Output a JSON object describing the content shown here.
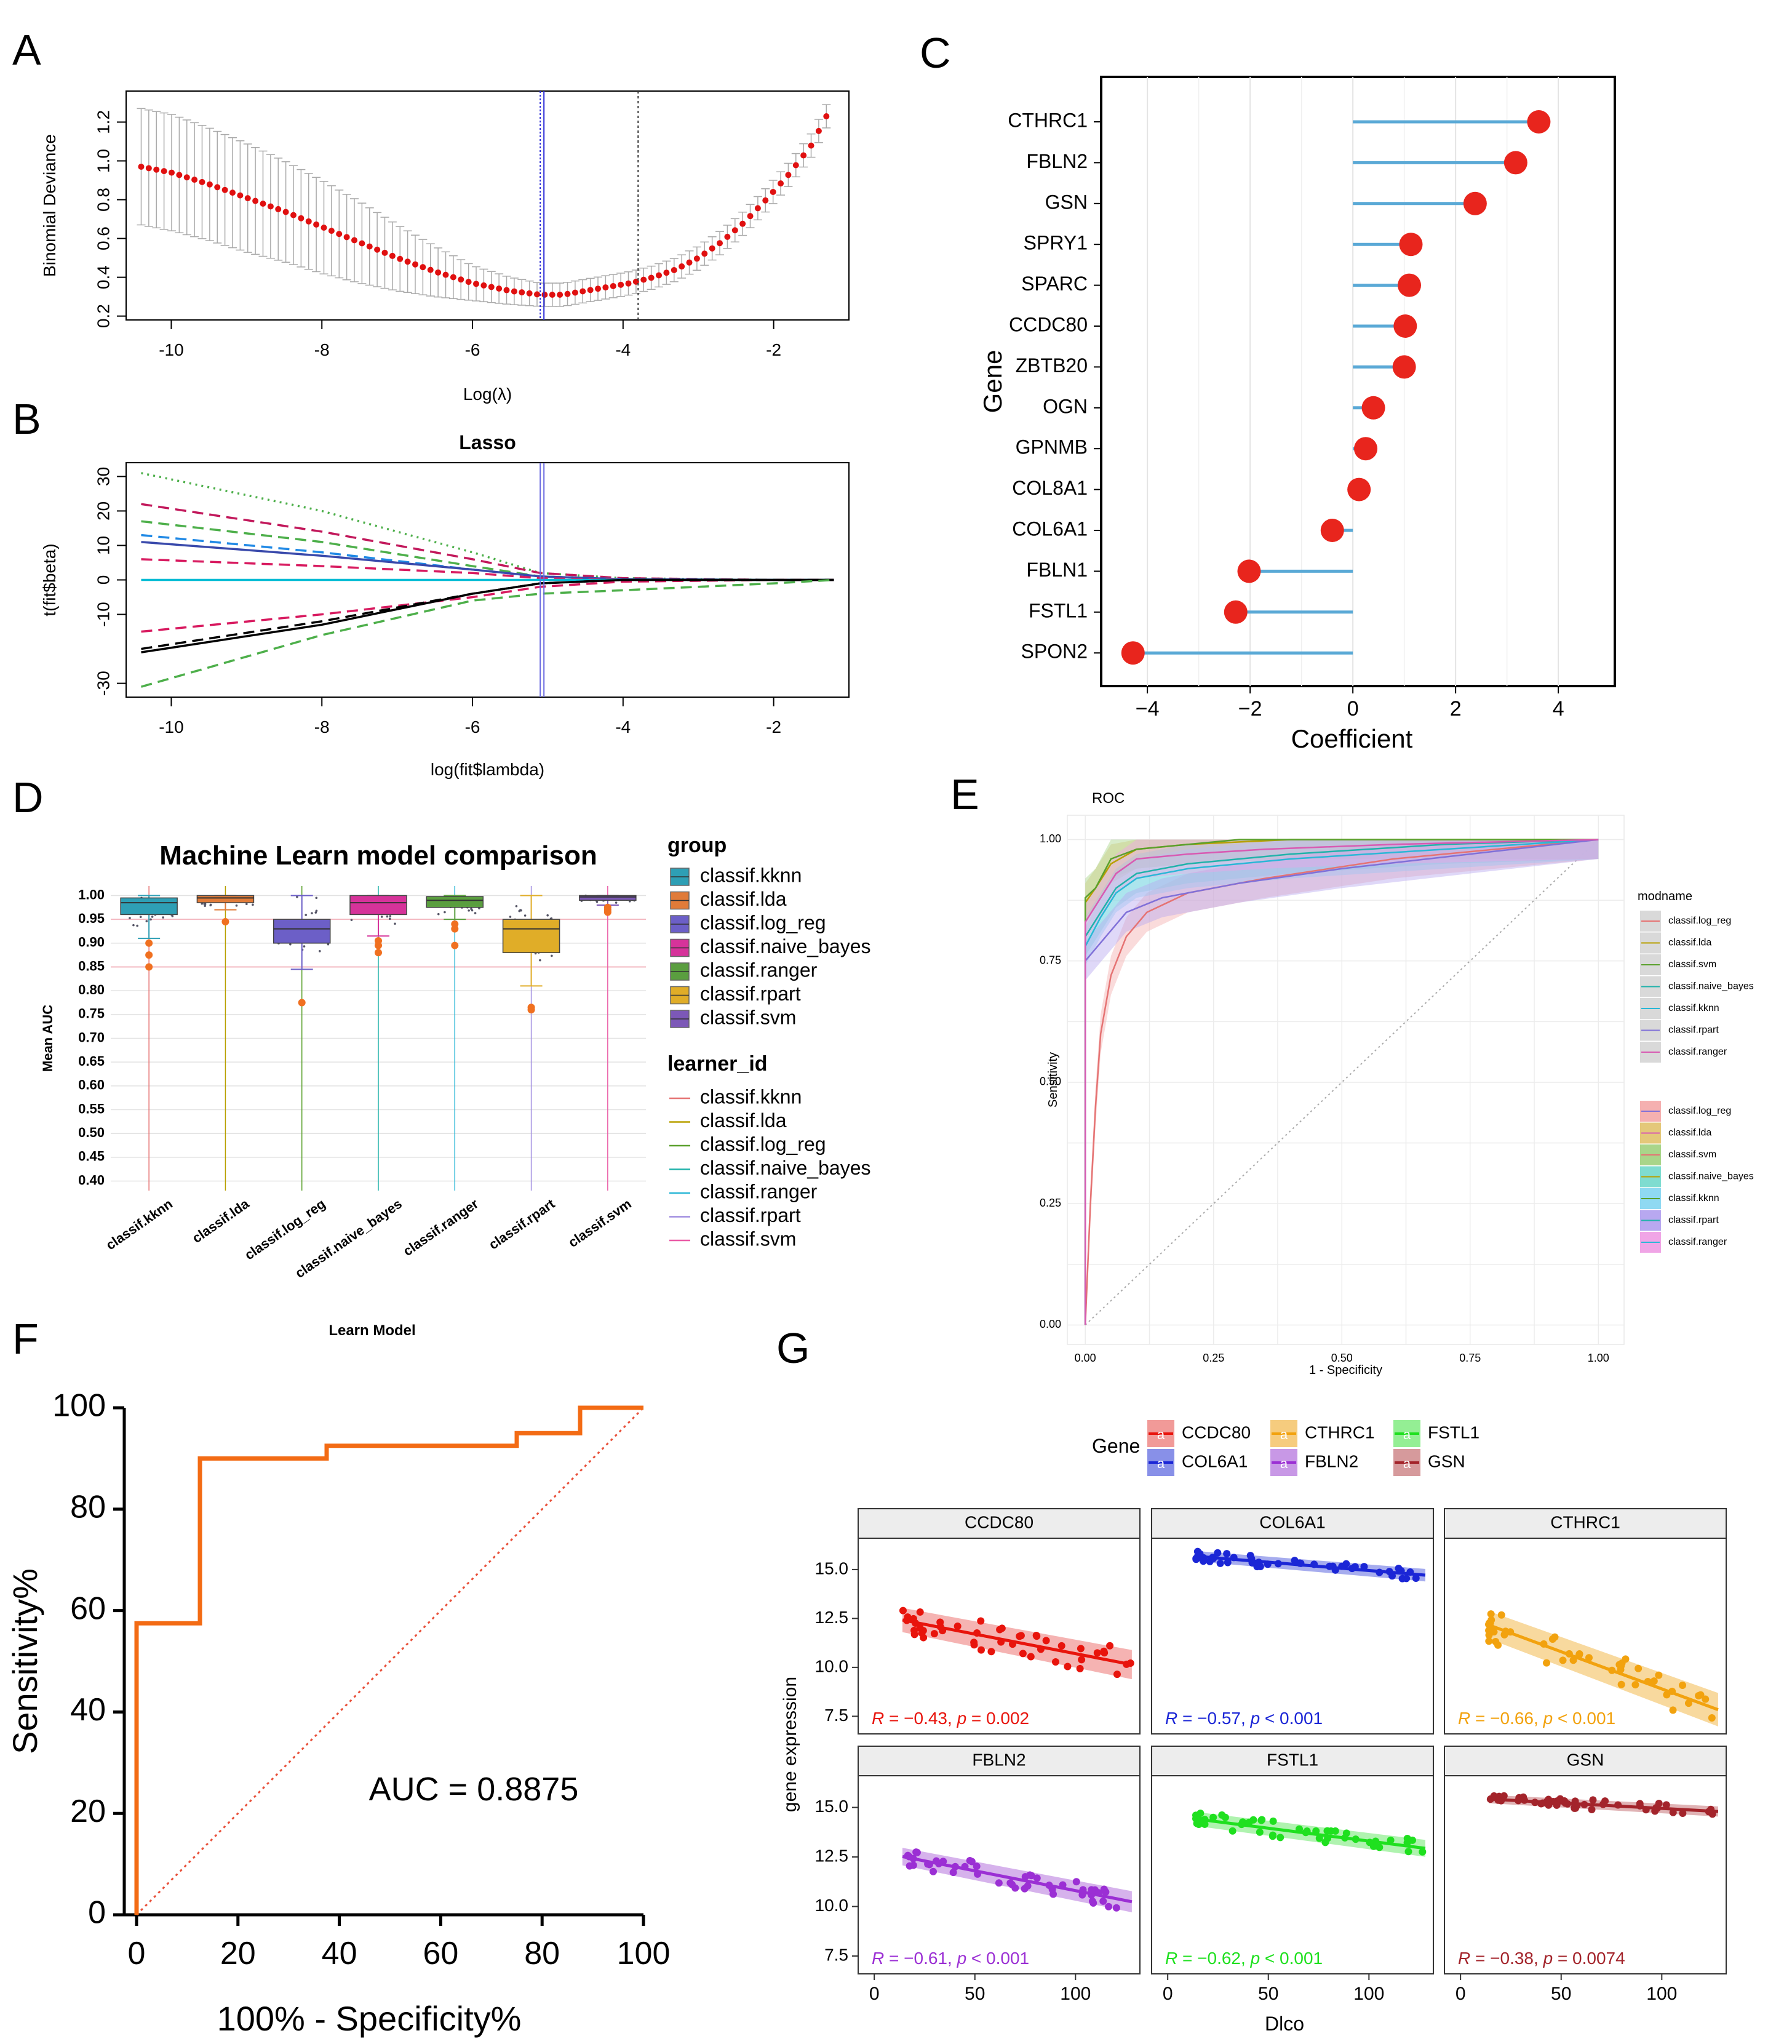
{
  "panel_labels": [
    "A",
    "B",
    "C",
    "D",
    "E",
    "F",
    "G"
  ],
  "chart_data": [
    {
      "panel": "A",
      "type": "scatter",
      "title": "",
      "xlabel": "Log(λ)",
      "ylabel": "Binomial Deviance",
      "xlim": [
        -10.6,
        -1.0
      ],
      "ylim": [
        0.18,
        1.36
      ],
      "xticks": [
        "-10",
        "-8",
        "-6",
        "-4",
        "-2"
      ],
      "yticks": [
        "0.2",
        "0.4",
        "0.6",
        "0.8",
        "1.0",
        "1.2"
      ],
      "lambda_min": -5.1,
      "lambda_1se": -3.8,
      "x": [
        -10.4,
        -10.0,
        -9.5,
        -9.0,
        -8.5,
        -8.0,
        -7.5,
        -7.0,
        -6.5,
        -6.0,
        -5.5,
        -5.1,
        -4.8,
        -4.5,
        -4.2,
        -3.9,
        -3.6,
        -3.3,
        -3.0,
        -2.7,
        -2.4,
        -2.1,
        -1.8,
        -1.5,
        -1.3
      ],
      "y": [
        0.97,
        0.94,
        0.88,
        0.81,
        0.74,
        0.66,
        0.58,
        0.5,
        0.43,
        0.37,
        0.33,
        0.31,
        0.31,
        0.33,
        0.35,
        0.37,
        0.4,
        0.44,
        0.5,
        0.58,
        0.68,
        0.8,
        0.93,
        1.08,
        1.23
      ],
      "err": [
        0.3,
        0.3,
        0.29,
        0.28,
        0.26,
        0.24,
        0.21,
        0.17,
        0.13,
        0.09,
        0.07,
        0.06,
        0.06,
        0.06,
        0.06,
        0.06,
        0.06,
        0.06,
        0.06,
        0.06,
        0.06,
        0.06,
        0.06,
        0.06,
        0.06
      ]
    },
    {
      "panel": "B",
      "type": "line",
      "title": "Lasso",
      "xlabel": "log(fit$lambda)",
      "ylabel": "t(fit$beta)",
      "xlim": [
        -10.6,
        -1.0
      ],
      "ylim": [
        -34,
        34
      ],
      "xticks": [
        "-10",
        "-8",
        "-6",
        "-4",
        "-2"
      ],
      "yticks": [
        "-30",
        "-10",
        "0",
        "10",
        "20",
        "30"
      ],
      "lambda_line": -5.1,
      "x": [
        -10.4,
        -8.0,
        -6.0,
        -5.1,
        -4.0,
        -2.0,
        -1.2
      ],
      "series": [
        {
          "name": "s1",
          "color": "#4daf4a",
          "dash": "dot",
          "values": [
            31,
            20,
            8,
            2,
            0.5,
            0,
            0
          ]
        },
        {
          "name": "s2",
          "color": "#c2185b",
          "dash": "dash",
          "values": [
            22,
            14,
            6,
            2,
            0.5,
            0,
            0
          ]
        },
        {
          "name": "s3",
          "color": "#4daf4a",
          "dash": "dash",
          "values": [
            17,
            11,
            4,
            1,
            0.2,
            0,
            0
          ]
        },
        {
          "name": "s4",
          "color": "#1e88e5",
          "dash": "dash",
          "values": [
            13,
            8,
            3,
            1,
            0.2,
            0,
            0
          ]
        },
        {
          "name": "s5",
          "color": "#3949ab",
          "dash": "solid",
          "values": [
            11,
            7,
            3,
            1,
            0.2,
            0,
            0
          ]
        },
        {
          "name": "s6",
          "color": "#d81b60",
          "dash": "dash",
          "values": [
            6,
            4,
            2,
            0.5,
            0,
            0,
            0
          ]
        },
        {
          "name": "s7",
          "color": "#00bcd4",
          "dash": "solid",
          "values": [
            0,
            0,
            0,
            0,
            0,
            0,
            0
          ]
        },
        {
          "name": "s8",
          "color": "#d81b60",
          "dash": "dash",
          "values": [
            -15,
            -10,
            -5,
            -2,
            -0.5,
            0,
            0
          ]
        },
        {
          "name": "s9",
          "color": "#000000",
          "dash": "solid",
          "values": [
            -21,
            -13,
            -4,
            -1,
            0,
            0,
            0
          ]
        },
        {
          "name": "s10",
          "color": "#000000",
          "dash": "dash",
          "values": [
            -20,
            -12,
            -4,
            -1,
            0,
            0,
            0
          ]
        },
        {
          "name": "s11",
          "color": "#4daf4a",
          "dash": "dash",
          "values": [
            -31,
            -16,
            -6,
            -4,
            -3,
            -1,
            0
          ]
        }
      ]
    },
    {
      "panel": "C",
      "type": "bar",
      "title": "",
      "xlabel": "Coefficient",
      "ylabel": "Gene",
      "xlim": [
        -4.9,
        5.1
      ],
      "xticks": [
        "−4",
        "−2",
        "0",
        "2",
        "4"
      ],
      "categories": [
        "CTHRC1",
        "FBLN2",
        "GSN",
        "SPRY1",
        "SPARC",
        "CCDC80",
        "ZBTB20",
        "OGN",
        "GPNMB",
        "COL8A1",
        "COL6A1",
        "FBLN1",
        "FSTL1",
        "SPON2"
      ],
      "values": [
        3.62,
        3.17,
        2.38,
        1.13,
        1.1,
        1.02,
        1.0,
        0.4,
        0.25,
        0.12,
        -0.4,
        -2.02,
        -2.28,
        -4.28
      ]
    },
    {
      "panel": "D",
      "type": "box",
      "title": "Machine Learn model comparison",
      "xlabel": "Learn Model",
      "ylabel": "Mean AUC",
      "ylim": [
        0.38,
        1.02
      ],
      "yticks": [
        "0.40",
        "0.45",
        "0.50",
        "0.55",
        "0.60",
        "0.65",
        "0.70",
        "0.75",
        "0.80",
        "0.85",
        "0.90",
        "0.95",
        "1.00"
      ],
      "categories": [
        "classif.kknn",
        "classif.lda",
        "classif.log_reg",
        "classif.naive_bayes",
        "classif.ranger",
        "classif.rpart",
        "classif.svm"
      ],
      "box_colors": [
        "#2e9fb5",
        "#e07b39",
        "#6c5fc7",
        "#d6339a",
        "#5a9e3f",
        "#e0ad28",
        "#7c58b7"
      ],
      "q1": [
        0.96,
        0.985,
        0.9,
        0.96,
        0.975,
        0.88,
        0.99
      ],
      "median": [
        0.985,
        0.995,
        0.93,
        0.985,
        0.99,
        0.93,
        0.997
      ],
      "q3": [
        0.995,
        1.0,
        0.95,
        1.0,
        0.998,
        0.95,
        1.0
      ],
      "whisker_low": [
        0.91,
        0.97,
        0.845,
        0.915,
        0.95,
        0.81,
        0.98
      ],
      "whisker_high": [
        1.0,
        1.0,
        1.0,
        1.0,
        1.0,
        1.0,
        1.0
      ],
      "outliers": [
        [
          0.9,
          0.875,
          0.85
        ],
        [
          0.945
        ],
        [
          0.775
        ],
        [
          0.905,
          0.895,
          0.88
        ],
        [
          0.94,
          0.93,
          0.895
        ],
        [
          0.765,
          0.76
        ],
        [
          0.975,
          0.97,
          0.965
        ]
      ],
      "legend_group_title": "group",
      "legend_learner_title": "learner_id",
      "learner_colors": [
        "#e57373",
        "#b8a000",
        "#5aa02c",
        "#20b2aa",
        "#2ab7d6",
        "#a08ee0",
        "#ea5aa6"
      ]
    },
    {
      "panel": "E",
      "type": "line",
      "title": "ROC",
      "xlabel": "1 - Specificity",
      "ylabel": "Sensitivity",
      "xlim": [
        -0.035,
        1.05
      ],
      "ylim": [
        -0.04,
        1.05
      ],
      "xticks": [
        "0.00",
        "0.25",
        "0.50",
        "0.75",
        "1.00"
      ],
      "yticks": [
        "0.00",
        "0.25",
        "0.50",
        "0.75",
        "1.00"
      ],
      "legend_title": "modname",
      "legend_entries": [
        "classif.log_reg",
        "classif.lda",
        "classif.svm",
        "classif.naive_bayes",
        "classif.kknn",
        "classif.rpart",
        "classif.ranger"
      ],
      "legend_line_colors": [
        "#e57373",
        "#b8a000",
        "#5aa02c",
        "#20b2aa",
        "#2ab7d6",
        "#8070d8",
        "#d85ab2"
      ],
      "legend_fill_colors": [
        "#f5b0b0",
        "#e4c87a",
        "#a9d58a",
        "#7fdcd0",
        "#8fd9f2",
        "#b8a8f0",
        "#f0a5e6"
      ],
      "series": [
        {
          "name": "classif.log_reg",
          "x": [
            0,
            0.01,
            0.02,
            0.03,
            0.05,
            0.08,
            0.12,
            0.2,
            0.35,
            0.6,
            1.0
          ],
          "y": [
            0,
            0.25,
            0.45,
            0.6,
            0.72,
            0.8,
            0.85,
            0.89,
            0.92,
            0.96,
            1.0
          ]
        },
        {
          "name": "classif.lda",
          "x": [
            0,
            0.0,
            0.02,
            0.05,
            0.1,
            0.2,
            0.4,
            1.0
          ],
          "y": [
            0,
            0.87,
            0.9,
            0.95,
            0.98,
            0.99,
            1.0,
            1.0
          ]
        },
        {
          "name": "classif.svm",
          "x": [
            0,
            0.0,
            0.02,
            0.05,
            0.1,
            0.2,
            0.3,
            1.0
          ],
          "y": [
            0,
            0.88,
            0.9,
            0.96,
            0.98,
            0.99,
            1.0,
            1.0
          ]
        },
        {
          "name": "classif.naive_bayes",
          "x": [
            0,
            0.0,
            0.03,
            0.06,
            0.1,
            0.2,
            0.4,
            0.7,
            1.0
          ],
          "y": [
            0,
            0.8,
            0.85,
            0.9,
            0.93,
            0.95,
            0.97,
            0.99,
            1.0
          ]
        },
        {
          "name": "classif.kknn",
          "x": [
            0,
            0.0,
            0.03,
            0.06,
            0.1,
            0.2,
            0.4,
            0.7,
            1.0
          ],
          "y": [
            0,
            0.78,
            0.84,
            0.89,
            0.92,
            0.94,
            0.96,
            0.98,
            1.0
          ]
        },
        {
          "name": "classif.rpart",
          "x": [
            0,
            0.0,
            0.04,
            0.08,
            0.15,
            0.3,
            0.5,
            0.75,
            1.0
          ],
          "y": [
            0,
            0.75,
            0.8,
            0.85,
            0.88,
            0.91,
            0.94,
            0.97,
            1.0
          ]
        },
        {
          "name": "classif.ranger",
          "x": [
            0,
            0.0,
            0.03,
            0.06,
            0.1,
            0.2,
            0.35,
            0.6,
            1.0
          ],
          "y": [
            0,
            0.83,
            0.88,
            0.93,
            0.96,
            0.97,
            0.98,
            0.99,
            1.0
          ]
        }
      ]
    },
    {
      "panel": "F",
      "type": "line",
      "title": "",
      "xlabel": "100% - Specificity%",
      "ylabel": "Sensitivity%",
      "xlim": [
        0,
        100
      ],
      "ylim": [
        0,
        100
      ],
      "xticks": [
        "0",
        "20",
        "40",
        "60",
        "80",
        "100"
      ],
      "yticks": [
        "0",
        "20",
        "40",
        "60",
        "80",
        "100"
      ],
      "annotation": "AUC = 0.8875",
      "x": [
        0,
        0,
        12.5,
        12.5,
        37.5,
        37.5,
        75,
        75,
        87.5,
        87.5,
        100
      ],
      "y": [
        0,
        57.5,
        57.5,
        90,
        90,
        92.5,
        92.5,
        95,
        95,
        100,
        100
      ]
    },
    {
      "panel": "G",
      "type": "scatter",
      "xlabel": "Dlco",
      "ylabel": "gene expression",
      "legend_title": "Gene",
      "legend_symbol": "a",
      "legend_order": [
        "CCDC80",
        "COL6A1",
        "CTHRC1",
        "FBLN2",
        "FSTL1",
        "GSN"
      ],
      "xlim": [
        -8,
        132
      ],
      "ylim": [
        6.6,
        16.6
      ],
      "xticks": [
        "0",
        "50",
        "100"
      ],
      "yticks": [
        "7.5",
        "10.0",
        "12.5",
        "15.0"
      ],
      "panels": [
        {
          "gene": "CCDC80",
          "color": "#e8140c",
          "band": "#f19a98",
          "R": "−0.43",
          "p_op": "=",
          "p": "0.002",
          "a": 12.7,
          "b": -0.02,
          "band_w": 0.35,
          "noise": 0.75
        },
        {
          "gene": "COL6A1",
          "color": "#1b26d6",
          "band": "#8890e8",
          "R": "−0.57",
          "p_op": "<",
          "p": "0.001",
          "a": 15.8,
          "b": -0.0085,
          "band_w": 0.15,
          "noise": 0.28
        },
        {
          "gene": "CTHRC1",
          "color": "#f2a20e",
          "band": "#f6cc7e",
          "R": "−0.66",
          "p_op": "<",
          "p": "0.001",
          "a": 12.7,
          "b": -0.038,
          "band_w": 0.4,
          "noise": 0.9
        },
        {
          "gene": "FBLN2",
          "color": "#9b2fd4",
          "band": "#c898e6",
          "R": "−0.61",
          "p_op": "<",
          "p": "0.001",
          "a": 12.8,
          "b": -0.02,
          "band_w": 0.25,
          "noise": 0.5
        },
        {
          "gene": "FSTL1",
          "color": "#1fe01f",
          "band": "#94ef94",
          "R": "−0.62",
          "p_op": "<",
          "p": "0.001",
          "a": 14.6,
          "b": -0.013,
          "band_w": 0.2,
          "noise": 0.4
        },
        {
          "gene": "GSN",
          "color": "#a3242b",
          "band": "#d69a9c",
          "R": "−0.38",
          "p_op": "=",
          "p": "0.0074",
          "a": 15.5,
          "b": -0.0055,
          "band_w": 0.12,
          "noise": 0.25
        }
      ]
    }
  ]
}
